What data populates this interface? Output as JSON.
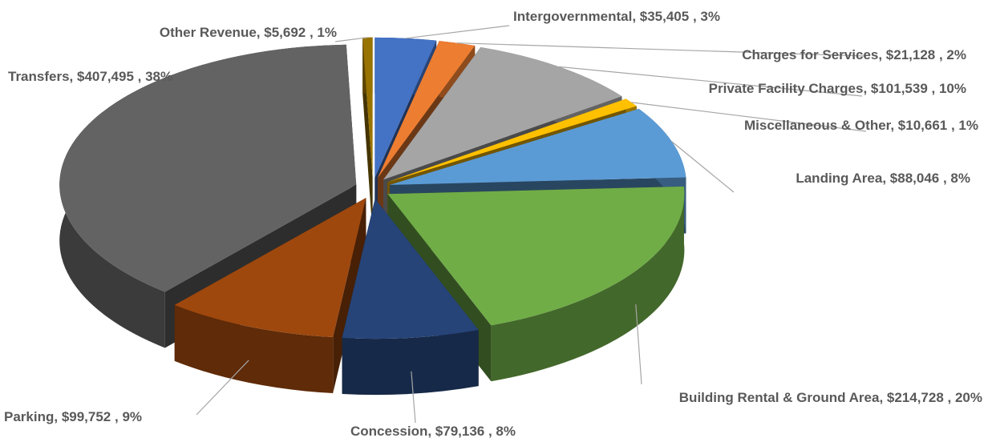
{
  "chart_data": {
    "type": "pie",
    "categories": [
      "Intergovernmental",
      "Charges for Services",
      "Private Facility Charges",
      "Miscellaneous & Other",
      "Landing Area",
      "Building Rental & Ground Area",
      "Concession",
      "Parking",
      "Transfers",
      "Other Revenue"
    ],
    "values": [
      35405,
      21128,
      101539,
      10661,
      88046,
      214728,
      79136,
      99752,
      407495,
      5692
    ],
    "value_labels": [
      "$35,405",
      "$21,128",
      "$101,539",
      "$10,661",
      "$88,046",
      "$214,728",
      "$79,136",
      "$99,752",
      "$407,495",
      "$5,692"
    ],
    "percents": [
      3,
      2,
      10,
      1,
      8,
      20,
      8,
      9,
      38,
      1
    ],
    "percent_labels": [
      "3%",
      "2%",
      "10%",
      "1%",
      "8%",
      "20%",
      "8%",
      "9%",
      "38%",
      "1%"
    ],
    "label_separators": [
      ",  ",
      " , "
    ],
    "colors": [
      "#4472c4",
      "#ed7d31",
      "#a5a5a5",
      "#ffc000",
      "#5b9bd5",
      "#70ad47",
      "#264478",
      "#9e480e",
      "#636363",
      "#997300"
    ]
  }
}
